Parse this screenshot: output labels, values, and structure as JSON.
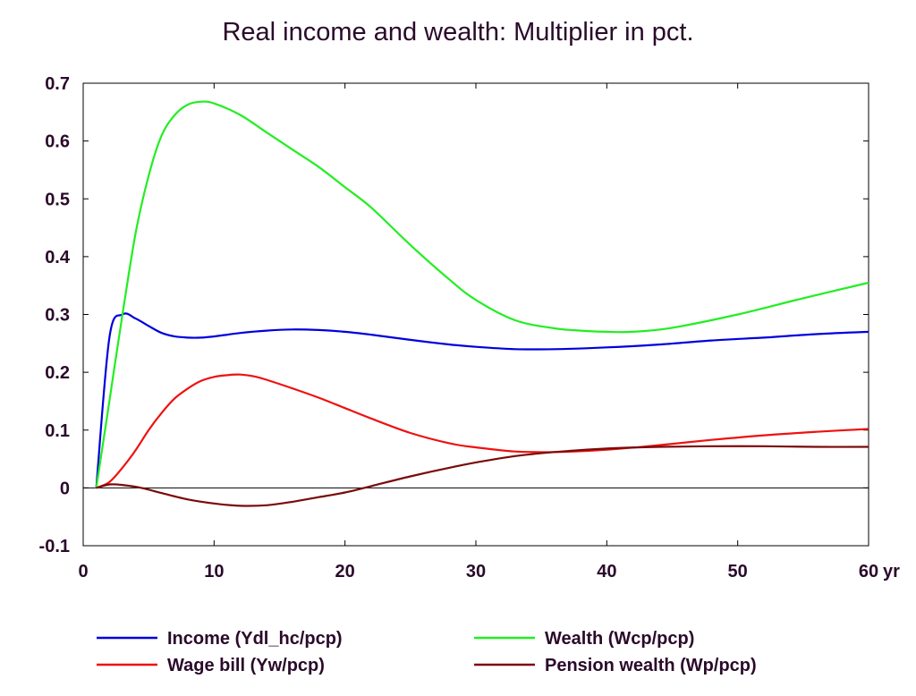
{
  "chart_data": {
    "type": "line",
    "title": "Real income and wealth: Multiplier in pct.",
    "x_unit_label": "yr",
    "xlim": [
      0,
      60
    ],
    "ylim": [
      -0.1,
      0.7
    ],
    "x_ticks": [
      0,
      10,
      20,
      30,
      40,
      50,
      60
    ],
    "y_ticks": [
      -0.1,
      0,
      0.1,
      0.2,
      0.3,
      0.4,
      0.5,
      0.6,
      0.7
    ],
    "legend_placement": "bottom",
    "series": [
      {
        "name": "Income (Ydl_hc/pcp)",
        "color": "#0000dd",
        "x": [
          1,
          2,
          3,
          4,
          5,
          6,
          7,
          8,
          9,
          10,
          12,
          14,
          16,
          18,
          20,
          22,
          25,
          28,
          30,
          33,
          36,
          40,
          44,
          48,
          52,
          56,
          60
        ],
        "values": [
          0.0,
          0.26,
          0.3,
          0.293,
          0.28,
          0.268,
          0.262,
          0.26,
          0.26,
          0.262,
          0.268,
          0.272,
          0.274,
          0.273,
          0.27,
          0.265,
          0.256,
          0.248,
          0.244,
          0.24,
          0.24,
          0.243,
          0.248,
          0.255,
          0.26,
          0.266,
          0.27
        ]
      },
      {
        "name": "Wealth (Wcp/pcp)",
        "color": "#22ee22",
        "x": [
          1,
          2,
          3,
          4,
          5,
          6,
          7,
          8,
          9,
          10,
          12,
          14,
          16,
          18,
          20,
          22,
          25,
          28,
          30,
          33,
          36,
          38,
          40,
          42,
          45,
          50,
          55,
          60
        ],
        "values": [
          0.0,
          0.15,
          0.3,
          0.44,
          0.54,
          0.61,
          0.645,
          0.663,
          0.668,
          0.665,
          0.645,
          0.615,
          0.585,
          0.555,
          0.52,
          0.485,
          0.42,
          0.36,
          0.325,
          0.29,
          0.276,
          0.272,
          0.27,
          0.27,
          0.277,
          0.3,
          0.328,
          0.355
        ]
      },
      {
        "name": "Wage bill (Yw/pcp)",
        "color": "#ee1111",
        "x": [
          1,
          2,
          3,
          4,
          5,
          6,
          7,
          8,
          9,
          10,
          11,
          12,
          13,
          14,
          16,
          18,
          20,
          22,
          25,
          28,
          30,
          33,
          36,
          40,
          44,
          48,
          52,
          56,
          60
        ],
        "values": [
          0.0,
          0.01,
          0.035,
          0.065,
          0.1,
          0.13,
          0.155,
          0.172,
          0.185,
          0.192,
          0.195,
          0.196,
          0.193,
          0.187,
          0.172,
          0.156,
          0.138,
          0.12,
          0.095,
          0.077,
          0.07,
          0.063,
          0.062,
          0.066,
          0.074,
          0.083,
          0.091,
          0.097,
          0.102
        ]
      },
      {
        "name": "Pension wealth (Wp/pcp)",
        "color": "#7a0a0a",
        "x": [
          1,
          2,
          3,
          4,
          5,
          6,
          8,
          10,
          12,
          14,
          16,
          18,
          20,
          22,
          25,
          28,
          30,
          33,
          36,
          40,
          44,
          48,
          52,
          56,
          60
        ],
        "values": [
          0.0,
          0.006,
          0.005,
          0.002,
          -0.003,
          -0.009,
          -0.02,
          -0.027,
          -0.031,
          -0.03,
          -0.024,
          -0.016,
          -0.008,
          0.003,
          0.02,
          0.035,
          0.044,
          0.055,
          0.062,
          0.068,
          0.071,
          0.072,
          0.072,
          0.071,
          0.071
        ]
      }
    ]
  }
}
